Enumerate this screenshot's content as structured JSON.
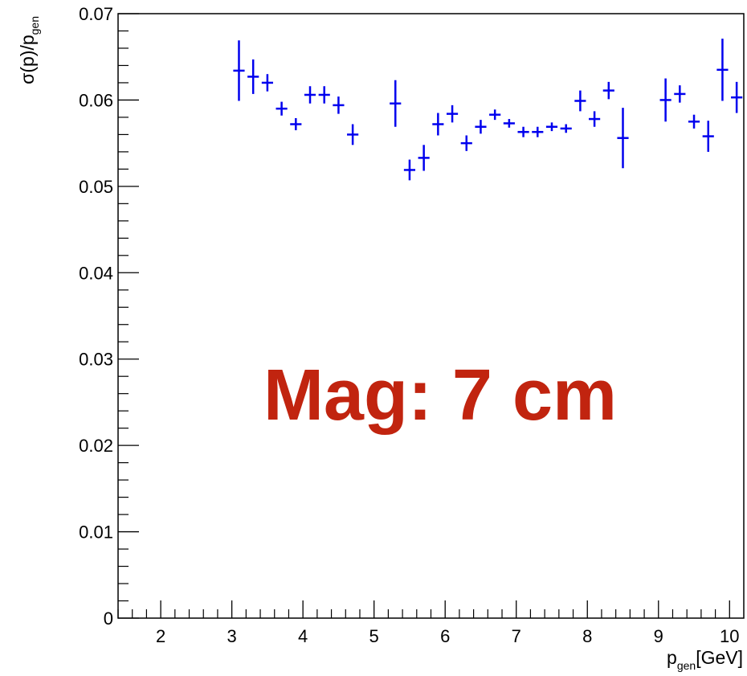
{
  "chart_data": {
    "type": "scatter",
    "title": "",
    "xlabel": "p_gen[GeV]",
    "ylabel": "σ(p)/p_gen",
    "xlim": [
      1.4,
      10.2
    ],
    "ylim": [
      0,
      0.07
    ],
    "x_ticks": [
      "2",
      "3",
      "4",
      "5",
      "6",
      "7",
      "8",
      "9",
      "10"
    ],
    "y_ticks": [
      "0",
      "0.01",
      "0.02",
      "0.03",
      "0.04",
      "0.05",
      "0.06",
      "0.07"
    ],
    "grid": false,
    "marker_color": "#0000ee",
    "annotation": {
      "text": "Mag: 7 cm",
      "color": "#c1240f"
    },
    "series": [
      {
        "points": [
          {
            "x": 3.1,
            "y": 0.0634,
            "err": 0.0035
          },
          {
            "x": 3.3,
            "y": 0.0627,
            "err": 0.002
          },
          {
            "x": 3.5,
            "y": 0.062,
            "err": 0.001
          },
          {
            "x": 3.7,
            "y": 0.059,
            "err": 0.0008
          },
          {
            "x": 3.9,
            "y": 0.0572,
            "err": 0.0007
          },
          {
            "x": 4.1,
            "y": 0.0606,
            "err": 0.001
          },
          {
            "x": 4.3,
            "y": 0.0606,
            "err": 0.001
          },
          {
            "x": 4.5,
            "y": 0.0594,
            "err": 0.001
          },
          {
            "x": 4.7,
            "y": 0.056,
            "err": 0.0012
          },
          {
            "x": 5.3,
            "y": 0.0596,
            "err": 0.0027
          },
          {
            "x": 5.5,
            "y": 0.0519,
            "err": 0.0012
          },
          {
            "x": 5.7,
            "y": 0.0533,
            "err": 0.0015
          },
          {
            "x": 5.9,
            "y": 0.0572,
            "err": 0.0013
          },
          {
            "x": 6.1,
            "y": 0.0584,
            "err": 0.001
          },
          {
            "x": 6.3,
            "y": 0.055,
            "err": 0.0009
          },
          {
            "x": 6.5,
            "y": 0.0569,
            "err": 0.0008
          },
          {
            "x": 6.7,
            "y": 0.0583,
            "err": 0.0006
          },
          {
            "x": 6.9,
            "y": 0.0573,
            "err": 0.0005
          },
          {
            "x": 7.1,
            "y": 0.0563,
            "err": 0.0006
          },
          {
            "x": 7.3,
            "y": 0.0563,
            "err": 0.0006
          },
          {
            "x": 7.5,
            "y": 0.0569,
            "err": 0.0005
          },
          {
            "x": 7.7,
            "y": 0.0567,
            "err": 0.0005
          },
          {
            "x": 7.9,
            "y": 0.0599,
            "err": 0.0012
          },
          {
            "x": 8.1,
            "y": 0.0578,
            "err": 0.0009
          },
          {
            "x": 8.3,
            "y": 0.0611,
            "err": 0.001
          },
          {
            "x": 8.5,
            "y": 0.0556,
            "err": 0.0035
          },
          {
            "x": 9.1,
            "y": 0.06,
            "err": 0.0025
          },
          {
            "x": 9.3,
            "y": 0.0607,
            "err": 0.001
          },
          {
            "x": 9.5,
            "y": 0.0575,
            "err": 0.0008
          },
          {
            "x": 9.7,
            "y": 0.0558,
            "err": 0.0018
          },
          {
            "x": 9.9,
            "y": 0.0635,
            "err": 0.0036
          },
          {
            "x": 10.1,
            "y": 0.0603,
            "err": 0.0018
          }
        ]
      }
    ]
  }
}
